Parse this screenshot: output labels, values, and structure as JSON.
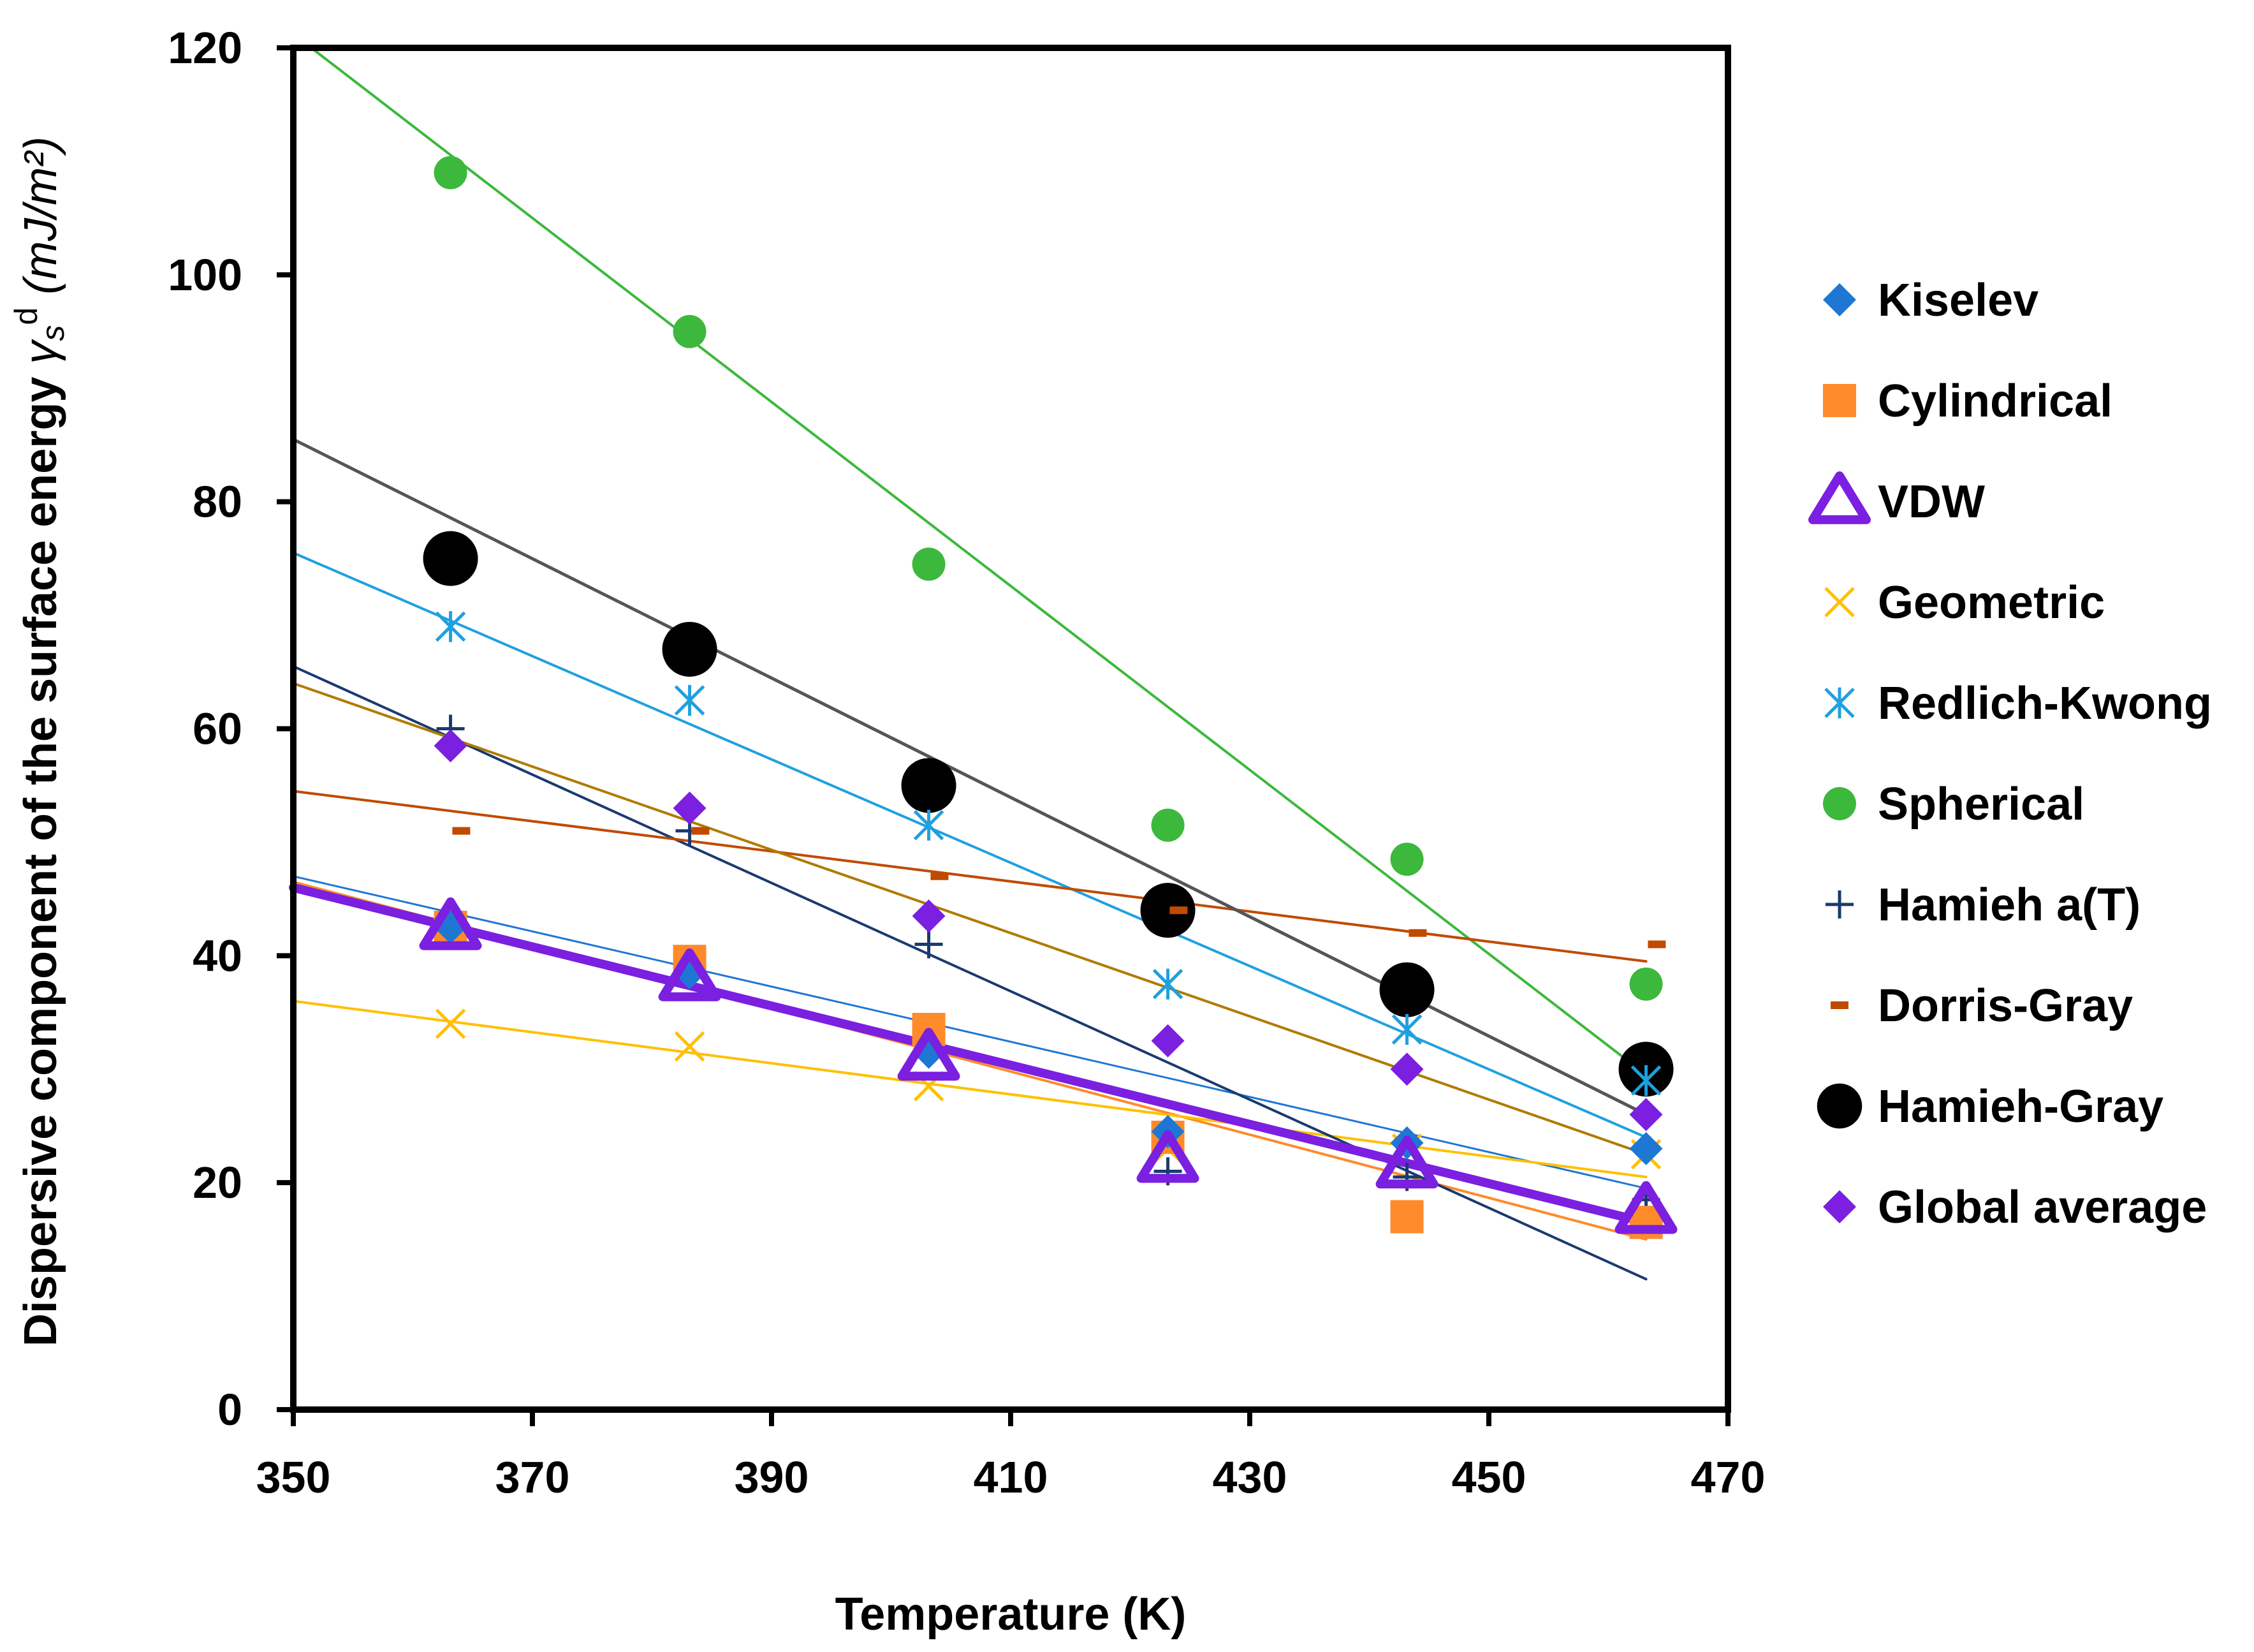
{
  "chart_data": {
    "type": "scatter",
    "title": "",
    "xlabel": "Temperature (K)",
    "ylabel_prefix": "Dispersive component of the surface energy ",
    "ylabel_gamma": "γ",
    "ylabel_sub": "s",
    "ylabel_sup": "d",
    "ylabel_units": " (mJ/m²)",
    "xlim": [
      350,
      470
    ],
    "ylim": [
      0,
      120
    ],
    "xticks": [
      350,
      370,
      390,
      410,
      430,
      450,
      470
    ],
    "yticks": [
      0,
      20,
      40,
      60,
      80,
      100,
      120
    ],
    "xtick_labels": [
      "350",
      "370",
      "390",
      "410",
      "430",
      "450",
      "470"
    ],
    "ytick_labels": [
      "0",
      "20",
      "40",
      "60",
      "80",
      "100",
      "120"
    ],
    "grid": false,
    "legend_position": "right",
    "x": [
      363.15,
      383.15,
      403.15,
      423.15,
      443.15,
      463.15
    ],
    "series": [
      {
        "name": "Kiselev",
        "marker": "diamond",
        "color": "#1f77d4",
        "values": [
          42.5,
          38.5,
          31.5,
          24.5,
          23.5,
          23.0
        ],
        "trend": [
          [
            350,
            47.0
          ],
          [
            463.15,
            19.5
          ]
        ],
        "trend_color": "#1f77d4",
        "trend_width": 3
      },
      {
        "name": "Cylindrical",
        "marker": "square",
        "color": "#ff8a2a",
        "values": [
          42.5,
          39.5,
          33.5,
          24.0,
          17.0,
          16.5
        ],
        "trend": [
          [
            350,
            46.5
          ],
          [
            463.15,
            15.0
          ]
        ],
        "trend_color": "#ff8a2a",
        "trend_width": 4
      },
      {
        "name": "VDW",
        "marker": "triangle",
        "color": "#7b1fe0",
        "values": [
          42.5,
          38.0,
          31.0,
          22.0,
          21.5,
          17.5
        ],
        "trend": [
          [
            350,
            46.0
          ],
          [
            463.15,
            16.5
          ]
        ],
        "trend_color": "#7b1fe0",
        "trend_width": 3
      },
      {
        "name": "Geometric",
        "marker": "x",
        "color": "#ffc000",
        "values": [
          34.0,
          32.0,
          28.5,
          23.0,
          23.0,
          22.5
        ],
        "trend": [
          [
            350,
            36.0
          ],
          [
            463.15,
            20.5
          ]
        ],
        "trend_color": "#ffc000",
        "trend_width": 4
      },
      {
        "name": "Redlich-Kwong",
        "marker": "asterisk",
        "color": "#1fa0e0",
        "values": [
          69.0,
          62.5,
          51.5,
          37.5,
          33.5,
          29.0
        ],
        "trend": [
          [
            350,
            75.5
          ],
          [
            463.15,
            24.0
          ]
        ],
        "trend_color": "#1fa0e0",
        "trend_width": 4
      },
      {
        "name": "Spherical",
        "marker": "circle",
        "color": "#3cb83c",
        "values": [
          109.0,
          95.0,
          74.5,
          51.5,
          48.5,
          37.5
        ],
        "trend": [
          [
            351.5,
            120.0
          ],
          [
            463.15,
            29.5
          ]
        ],
        "trend_color": "#3cb83c",
        "trend_width": 4
      },
      {
        "name": "Hamieh a(T)",
        "marker": "plus",
        "color": "#1a3a70",
        "values": [
          60.0,
          51.0,
          41.0,
          21.0,
          20.5,
          18.5
        ],
        "trend": [
          [
            350,
            65.5
          ],
          [
            463.15,
            11.5
          ]
        ],
        "trend_color": "#1a3a70",
        "trend_width": 4
      },
      {
        "name": "Dorris-Gray",
        "marker": "dash",
        "color": "#c04a00",
        "values": [
          51.0,
          51.0,
          47.0,
          44.0,
          42.0,
          41.0
        ],
        "trend": [
          [
            350,
            54.5
          ],
          [
            463.15,
            39.5
          ]
        ],
        "trend_color": "#c04a00",
        "trend_width": 4
      },
      {
        "name": "Hamieh-Gray",
        "marker": "bigcircle",
        "color": "#000000",
        "values": [
          75.0,
          67.0,
          55.0,
          44.0,
          37.0,
          30.0
        ],
        "trend": [
          [
            350,
            85.5
          ],
          [
            463.15,
            26.0
          ]
        ],
        "trend_color": "#555555",
        "trend_width": 5
      },
      {
        "name": "Global average",
        "marker": "diamond",
        "color": "#7b1fe0",
        "values": [
          58.5,
          53.0,
          43.5,
          32.5,
          30.0,
          26.0
        ],
        "trend": [
          [
            350,
            64.0
          ],
          [
            463.15,
            22.5
          ]
        ],
        "trend_color": "#b07a00",
        "trend_width": 4
      }
    ],
    "extra_lines": [
      {
        "name": "VDW trend (bold)",
        "points": [
          [
            350,
            46.0
          ],
          [
            463.15,
            16.5
          ]
        ],
        "color": "#7b1fe0",
        "width": 14
      }
    ]
  }
}
